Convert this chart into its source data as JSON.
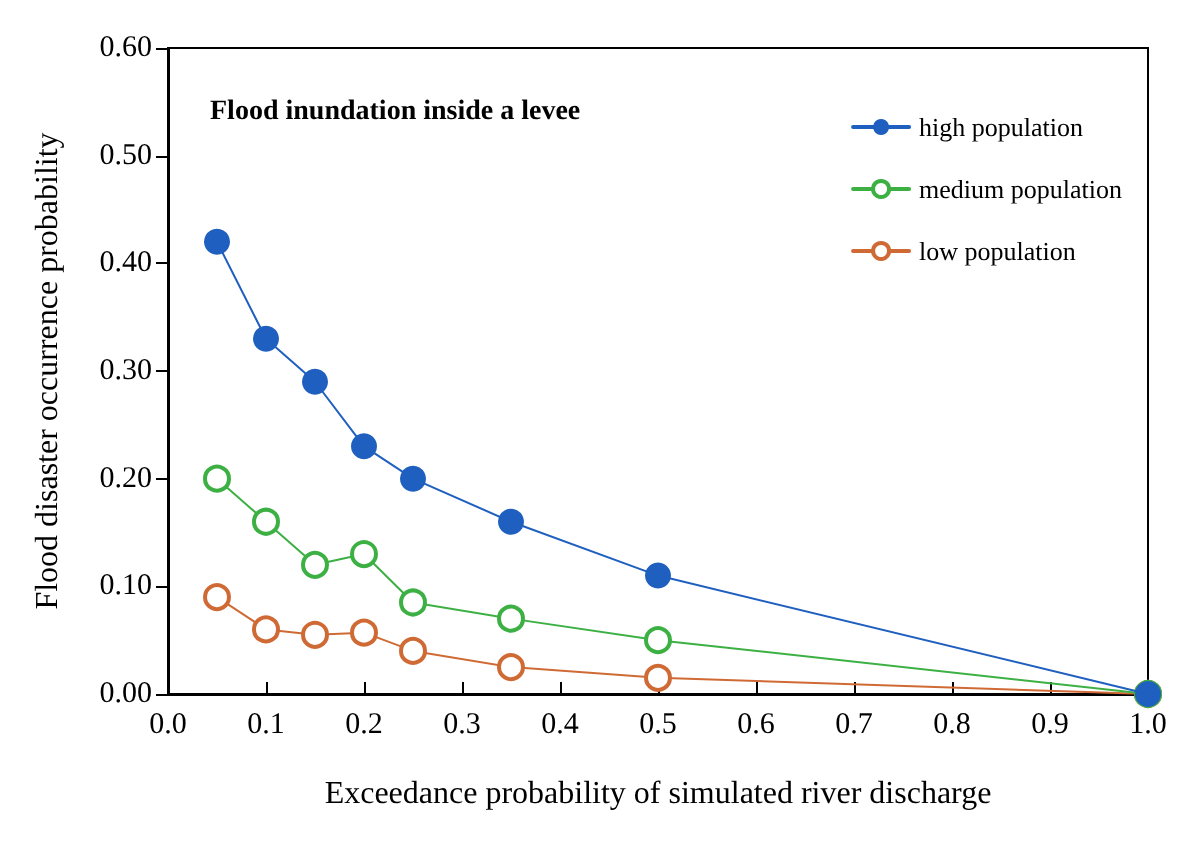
{
  "chart_data": {
    "type": "line",
    "title": "Flood inundation inside a levee",
    "xlabel": "Exceedance probability of simulated river discharge",
    "ylabel": "Flood disaster occurrence probability",
    "x": [
      0.05,
      0.1,
      0.15,
      0.2,
      0.25,
      0.35,
      0.5,
      1.0
    ],
    "series": [
      {
        "name": "high population",
        "color": "#1f5fbf",
        "values": [
          0.42,
          0.33,
          0.29,
          0.23,
          0.2,
          0.16,
          0.11,
          0
        ]
      },
      {
        "name": "medium population",
        "color": "#3cb043",
        "values": [
          0.2,
          0.16,
          0.12,
          0.13,
          0.085,
          0.07,
          0.05,
          0
        ]
      },
      {
        "name": "low population",
        "color": "#d06a35",
        "values": [
          0.09,
          0.06,
          0.055,
          0.057,
          0.04,
          0.025,
          0.015,
          0
        ]
      }
    ],
    "xlim": [
      0,
      1
    ],
    "xticks": [
      {
        "value": 0,
        "label": "0.0"
      },
      {
        "value": 0.1,
        "label": "0.1"
      },
      {
        "value": 0.2,
        "label": "0.2"
      },
      {
        "value": 0.3,
        "label": "0.3"
      },
      {
        "value": 0.4,
        "label": "0.4"
      },
      {
        "value": 0.5,
        "label": "0.5"
      },
      {
        "value": 0.6,
        "label": "0.6"
      },
      {
        "value": 0.7,
        "label": "0.7"
      },
      {
        "value": 0.8,
        "label": "0.8"
      },
      {
        "value": 0.9,
        "label": "0.9"
      },
      {
        "value": 1,
        "label": "1.0"
      }
    ],
    "ylim": [
      0,
      0.6
    ],
    "yticks": [
      {
        "value": 0,
        "label": "0.00"
      },
      {
        "value": 0.1,
        "label": "0.10"
      },
      {
        "value": 0.2,
        "label": "0.20"
      },
      {
        "value": 0.3,
        "label": "0.30"
      },
      {
        "value": 0.4,
        "label": "0.40"
      },
      {
        "value": 0.5,
        "label": "0.50"
      },
      {
        "value": 0.6,
        "label": "0.60"
      }
    ],
    "grid": false,
    "legend": "top right",
    "marker": "circle",
    "line_style": "solid"
  }
}
